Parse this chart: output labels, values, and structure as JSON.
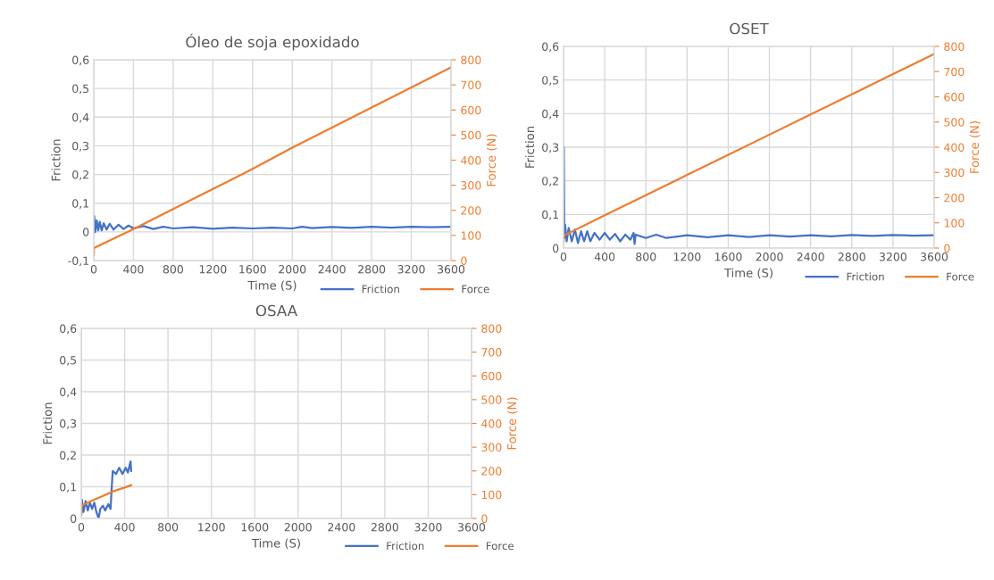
{
  "chart_data": [
    {
      "type": "line",
      "title": "Óleo de soja epoxidado",
      "xlabel": "Time (S)",
      "ylabel": "Friction",
      "y2label": "Force (N)",
      "xlim": [
        0,
        3600
      ],
      "xticks": [
        0,
        400,
        800,
        1200,
        1600,
        2000,
        2400,
        2800,
        3200,
        3600
      ],
      "ylim": [
        -0.1,
        0.6
      ],
      "yticks": [
        {
          "value": -0.1,
          "label": "-0,1"
        },
        0,
        {
          "value": 0.1,
          "label": "0,1"
        },
        {
          "value": 0.2,
          "label": "0,2"
        },
        {
          "value": 0.3,
          "label": "0,3"
        },
        {
          "value": 0.4,
          "label": "0,4"
        },
        {
          "value": 0.5,
          "label": "0,5"
        },
        {
          "value": 0.6,
          "label": "0,6"
        }
      ],
      "y2lim": [
        0,
        800
      ],
      "y2ticks": [
        0,
        100,
        200,
        300,
        400,
        500,
        600,
        700,
        800
      ],
      "grid": true,
      "legend": "bottom right",
      "series": [
        {
          "name": "Friction",
          "color": "#4472c4",
          "x": [
            0,
            5,
            15,
            30,
            45,
            60,
            80,
            100,
            130,
            160,
            200,
            250,
            300,
            350,
            400,
            500,
            600,
            700,
            800,
            1000,
            1200,
            1400,
            1600,
            1800,
            2000,
            2100,
            2200,
            2400,
            2600,
            2800,
            3000,
            3200,
            3400,
            3600
          ],
          "values": [
            0.0,
            0.055,
            0.0,
            0.04,
            0.005,
            0.035,
            0.005,
            0.03,
            0.008,
            0.028,
            0.008,
            0.025,
            0.01,
            0.022,
            0.012,
            0.02,
            0.01,
            0.018,
            0.012,
            0.016,
            0.011,
            0.015,
            0.012,
            0.015,
            0.012,
            0.018,
            0.013,
            0.017,
            0.014,
            0.018,
            0.015,
            0.018,
            0.016,
            0.018
          ]
        },
        {
          "name": "Force",
          "color": "#ed7d31",
          "axis": "y2",
          "x": [
            0,
            2,
            400,
            800,
            1200,
            1600,
            2000,
            2400,
            2800,
            3200,
            3600
          ],
          "values": [
            20,
            50,
            125,
            205,
            285,
            365,
            450,
            530,
            610,
            690,
            770
          ]
        }
      ]
    },
    {
      "type": "line",
      "title": "OSET",
      "xlabel": "Time (S)",
      "ylabel": "Friction",
      "y2label": "Force (N)",
      "xlim": [
        0,
        3600
      ],
      "xticks": [
        0,
        400,
        800,
        1200,
        1600,
        2000,
        2400,
        2800,
        3200,
        3600
      ],
      "ylim": [
        0,
        0.6
      ],
      "yticks": [
        0,
        {
          "value": 0.1,
          "label": "0,1"
        },
        {
          "value": 0.2,
          "label": "0,2"
        },
        {
          "value": 0.3,
          "label": "0,3"
        },
        {
          "value": 0.4,
          "label": "0,4"
        },
        {
          "value": 0.5,
          "label": "0,5"
        },
        {
          "value": 0.6,
          "label": "0,6"
        }
      ],
      "y2lim": [
        0,
        800
      ],
      "y2ticks": [
        0,
        100,
        200,
        300,
        400,
        500,
        600,
        700,
        800
      ],
      "grid": true,
      "legend": "bottom right",
      "series": [
        {
          "name": "Friction",
          "color": "#4472c4",
          "x": [
            0,
            3,
            8,
            15,
            30,
            50,
            80,
            110,
            140,
            170,
            200,
            230,
            260,
            300,
            350,
            400,
            450,
            500,
            550,
            600,
            650,
            680,
            690,
            700,
            800,
            900,
            1000,
            1200,
            1400,
            1600,
            1800,
            2000,
            2200,
            2400,
            2600,
            2800,
            3000,
            3200,
            3400,
            3600
          ],
          "values": [
            0.02,
            0.3,
            0.03,
            0.07,
            0.02,
            0.06,
            0.02,
            0.055,
            0.015,
            0.05,
            0.02,
            0.05,
            0.02,
            0.045,
            0.025,
            0.045,
            0.025,
            0.042,
            0.02,
            0.04,
            0.025,
            0.045,
            0.012,
            0.04,
            0.03,
            0.04,
            0.03,
            0.038,
            0.032,
            0.038,
            0.033,
            0.038,
            0.034,
            0.038,
            0.035,
            0.039,
            0.036,
            0.039,
            0.037,
            0.038
          ]
        },
        {
          "name": "Force",
          "color": "#ed7d31",
          "axis": "y2",
          "x": [
            0,
            5,
            400,
            800,
            1200,
            1600,
            2000,
            2400,
            2800,
            3200,
            3600
          ],
          "values": [
            30,
            50,
            130,
            210,
            290,
            370,
            450,
            530,
            610,
            690,
            770
          ]
        }
      ]
    },
    {
      "type": "line",
      "title": "OSAA",
      "xlabel": "Time (S)",
      "ylabel": "Friction",
      "y2label": "Force (N)",
      "xlim": [
        0,
        3600
      ],
      "xticks": [
        0,
        400,
        800,
        1200,
        1600,
        2000,
        2400,
        2800,
        3200,
        3600
      ],
      "ylim": [
        0,
        0.6
      ],
      "yticks": [
        0,
        {
          "value": 0.1,
          "label": "0,1"
        },
        {
          "value": 0.2,
          "label": "0,2"
        },
        {
          "value": 0.3,
          "label": "0,3"
        },
        {
          "value": 0.4,
          "label": "0,4"
        },
        {
          "value": 0.5,
          "label": "0,5"
        },
        {
          "value": 0.6,
          "label": "0,6"
        }
      ],
      "y2lim": [
        0,
        800
      ],
      "y2ticks": [
        0,
        100,
        200,
        300,
        400,
        500,
        600,
        700,
        800
      ],
      "grid": true,
      "legend": "bottom right",
      "series": [
        {
          "name": "Friction",
          "color": "#4472c4",
          "x": [
            0,
            5,
            20,
            40,
            60,
            80,
            100,
            120,
            140,
            160,
            175,
            200,
            220,
            250,
            270,
            290,
            320,
            350,
            380,
            410,
            430,
            455,
            460
          ],
          "values": [
            0.01,
            0.06,
            0.02,
            0.055,
            0.025,
            0.05,
            0.03,
            0.05,
            0.02,
            0.0,
            0.03,
            0.04,
            0.025,
            0.045,
            0.03,
            0.15,
            0.14,
            0.16,
            0.14,
            0.16,
            0.145,
            0.18,
            0.15
          ]
        },
        {
          "name": "Force",
          "color": "#ed7d31",
          "axis": "y2",
          "x": [
            0,
            5,
            100,
            200,
            300,
            400,
            460
          ],
          "values": [
            15,
            55,
            75,
            95,
            115,
            130,
            140
          ]
        }
      ]
    }
  ]
}
